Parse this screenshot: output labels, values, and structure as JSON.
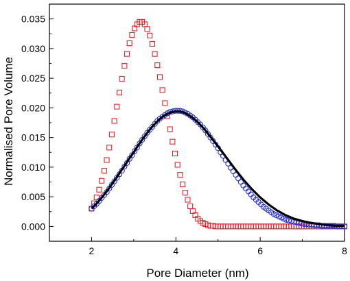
{
  "chart_data": {
    "type": "scatter",
    "xlabel": "Pore Diameter (nm)",
    "ylabel": "Normalised Pore Volume",
    "xlim": [
      1,
      8
    ],
    "ylim": [
      -0.0025,
      0.0375
    ],
    "xticks": [
      2,
      4,
      6,
      8
    ],
    "yticks": [
      0.0,
      0.005,
      0.01,
      0.015,
      0.02,
      0.025,
      0.03,
      0.035
    ],
    "ytick_labels": [
      "0.000",
      "0.005",
      "0.010",
      "0.015",
      "0.020",
      "0.025",
      "0.030",
      "0.035"
    ],
    "xtick_labels": [
      "2",
      "4",
      "6",
      "8"
    ],
    "grid": false,
    "legend": "none",
    "series": [
      {
        "style": "square-markers",
        "color": "#e8232a",
        "x": [
          2.0,
          2.06,
          2.12,
          2.18,
          2.24,
          2.3,
          2.36,
          2.42,
          2.48,
          2.54,
          2.6,
          2.66,
          2.72,
          2.78,
          2.84,
          2.9,
          2.96,
          3.02,
          3.08,
          3.14,
          3.2,
          3.26,
          3.32,
          3.38,
          3.44,
          3.5,
          3.56,
          3.62,
          3.68,
          3.74,
          3.8,
          3.86,
          3.92,
          3.98,
          4.04,
          4.1,
          4.16,
          4.22,
          4.28,
          4.34,
          4.4,
          4.46,
          4.52,
          4.58,
          4.64,
          4.7,
          4.76,
          4.82,
          4.88,
          4.94,
          5.0,
          5.06,
          5.12,
          5.18,
          5.24,
          5.3,
          5.36,
          5.42,
          5.48,
          5.54,
          5.6,
          5.66,
          5.72,
          5.78,
          5.84,
          5.9,
          5.96,
          6.02,
          6.08,
          6.14,
          6.2,
          6.26,
          6.32,
          6.38,
          6.44,
          6.5,
          6.56,
          6.62,
          6.68,
          6.74,
          6.8,
          6.86,
          6.92,
          6.98,
          7.04,
          7.1,
          7.16,
          7.22,
          7.28,
          7.34,
          7.4,
          7.46,
          7.52,
          7.58,
          7.64,
          7.7,
          7.76,
          7.82,
          7.88,
          7.94,
          8.0
        ],
        "y": [
          0.003,
          0.0039,
          0.0049,
          0.0062,
          0.0077,
          0.0094,
          0.0112,
          0.0133,
          0.0155,
          0.0178,
          0.0202,
          0.0226,
          0.0249,
          0.0271,
          0.0291,
          0.0309,
          0.0323,
          0.0334,
          0.0341,
          0.0345,
          0.0345,
          0.0341,
          0.0333,
          0.0322,
          0.0308,
          0.0291,
          0.0272,
          0.0252,
          0.023,
          0.0208,
          0.0186,
          0.0164,
          0.0143,
          0.0123,
          0.0104,
          0.0087,
          0.0071,
          0.0057,
          0.0045,
          0.0034,
          0.0026,
          0.0019,
          0.0013,
          0.0009,
          0.0006,
          0.0004,
          0.0002,
          0.0001,
          0.0001,
          0.0,
          0.0,
          0.0,
          0.0,
          0.0,
          0.0,
          0.0,
          0.0,
          0.0,
          0.0,
          0.0,
          0.0,
          0.0,
          0.0,
          0.0,
          0.0,
          0.0,
          0.0,
          0.0,
          0.0,
          0.0,
          0.0,
          0.0,
          0.0,
          0.0,
          0.0,
          0.0,
          0.0,
          0.0,
          0.0,
          0.0,
          0.0,
          0.0,
          0.0,
          0.0,
          0.0,
          0.0,
          0.0,
          0.0,
          0.0,
          0.0,
          0.0,
          0.0,
          0.0,
          0.0,
          0.0,
          0.0,
          0.0,
          0.0,
          0.0,
          0.0,
          0.0
        ]
      },
      {
        "style": "circle-markers",
        "color": "#1f2bd6",
        "x": [
          2.0,
          2.06,
          2.12,
          2.18,
          2.24,
          2.3,
          2.36,
          2.42,
          2.48,
          2.54,
          2.6,
          2.66,
          2.72,
          2.78,
          2.84,
          2.9,
          2.96,
          3.02,
          3.08,
          3.14,
          3.2,
          3.26,
          3.32,
          3.38,
          3.44,
          3.5,
          3.56,
          3.62,
          3.68,
          3.74,
          3.8,
          3.86,
          3.92,
          3.98,
          4.04,
          4.1,
          4.16,
          4.22,
          4.28,
          4.34,
          4.4,
          4.46,
          4.52,
          4.58,
          4.64,
          4.7,
          4.76,
          4.82,
          4.88,
          4.94,
          5.0,
          5.06,
          5.12,
          5.18,
          5.24,
          5.3,
          5.36,
          5.42,
          5.48,
          5.54,
          5.6,
          5.66,
          5.72,
          5.78,
          5.84,
          5.9,
          5.96,
          6.02,
          6.08,
          6.14,
          6.2,
          6.26,
          6.32,
          6.38,
          6.44,
          6.5,
          6.56,
          6.62,
          6.68,
          6.74,
          6.8,
          6.86,
          6.92,
          6.98,
          7.04,
          7.1,
          7.16,
          7.22,
          7.28,
          7.34,
          7.4,
          7.46,
          7.52,
          7.58,
          7.64,
          7.7,
          7.76,
          7.82,
          7.88,
          7.94,
          8.0
        ],
        "y": [
          0.003,
          0.0034,
          0.0038,
          0.0043,
          0.0048,
          0.0053,
          0.0058,
          0.0064,
          0.007,
          0.0076,
          0.0082,
          0.0088,
          0.0094,
          0.0101,
          0.0107,
          0.0114,
          0.012,
          0.0127,
          0.0133,
          0.014,
          0.0146,
          0.0152,
          0.0158,
          0.0163,
          0.0168,
          0.0173,
          0.0178,
          0.0182,
          0.0185,
          0.0188,
          0.0191,
          0.0193,
          0.0194,
          0.0195,
          0.0195,
          0.0195,
          0.0194,
          0.0192,
          0.019,
          0.0187,
          0.0184,
          0.018,
          0.0176,
          0.0172,
          0.0167,
          0.0162,
          0.0156,
          0.015,
          0.0144,
          0.0138,
          0.0132,
          0.0125,
          0.0119,
          0.0112,
          0.0106,
          0.0099,
          0.0093,
          0.0087,
          0.0081,
          0.0075,
          0.0069,
          0.0064,
          0.0059,
          0.0054,
          0.0049,
          0.0045,
          0.0041,
          0.0037,
          0.0033,
          0.003,
          0.0027,
          0.0024,
          0.0021,
          0.0019,
          0.0017,
          0.0015,
          0.0013,
          0.0011,
          0.001,
          0.0009,
          0.0008,
          0.0007,
          0.0006,
          0.0005,
          0.0004,
          0.0004,
          0.0003,
          0.0003,
          0.0002,
          0.0002,
          0.0002,
          0.0001,
          0.0001,
          0.0001,
          0.0001,
          0.0001,
          0.0001,
          0.0,
          0.0,
          0.0,
          0.0
        ]
      },
      {
        "style": "line",
        "color": "#000000",
        "x": [
          2.0,
          2.1,
          2.2,
          2.3,
          2.4,
          2.5,
          2.6,
          2.7,
          2.8,
          2.9,
          3.0,
          3.1,
          3.2,
          3.3,
          3.4,
          3.5,
          3.6,
          3.7,
          3.8,
          3.9,
          4.0,
          4.1,
          4.2,
          4.3,
          4.4,
          4.5,
          4.6,
          4.7,
          4.8,
          4.9,
          5.0,
          5.2,
          5.4,
          5.6,
          5.8,
          6.0,
          6.2,
          6.4,
          6.6,
          6.8,
          7.0,
          7.2,
          7.4,
          7.6,
          7.8,
          8.0
        ],
        "y": [
          0.003,
          0.0037,
          0.0045,
          0.0054,
          0.0063,
          0.0073,
          0.0083,
          0.0094,
          0.0104,
          0.0115,
          0.0125,
          0.0136,
          0.0146,
          0.0156,
          0.0165,
          0.0173,
          0.018,
          0.0186,
          0.019,
          0.0193,
          0.0194,
          0.0194,
          0.0192,
          0.0188,
          0.0183,
          0.0177,
          0.017,
          0.0162,
          0.0153,
          0.0144,
          0.0135,
          0.0116,
          0.0097,
          0.0079,
          0.0063,
          0.0049,
          0.0037,
          0.0027,
          0.0019,
          0.0013,
          0.0009,
          0.0006,
          0.0004,
          0.0002,
          0.0001,
          0.0001
        ]
      }
    ]
  }
}
